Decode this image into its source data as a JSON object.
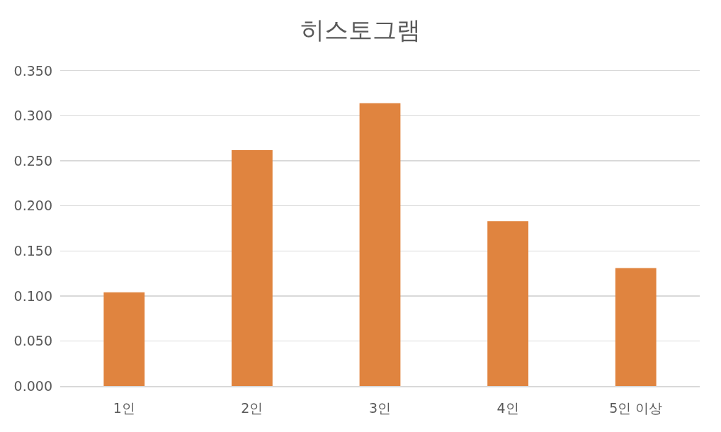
{
  "chart_data": {
    "type": "bar",
    "title": "히스토그램",
    "categories": [
      "1인",
      "2인",
      "3인",
      "4인",
      "5인 이상"
    ],
    "values": [
      0.104,
      0.262,
      0.314,
      0.183,
      0.131
    ],
    "color": "#e0843f",
    "ylim": [
      0,
      0.35
    ],
    "yticks": [
      {
        "value": 0,
        "label": "0.000"
      },
      {
        "value": 0.05,
        "label": "0.050"
      },
      {
        "value": 0.1,
        "label": "0.100"
      },
      {
        "value": 0.15,
        "label": "0.150"
      },
      {
        "value": 0.2,
        "label": "0.200"
      },
      {
        "value": 0.25,
        "label": "0.250"
      },
      {
        "value": 0.3,
        "label": "0.300"
      },
      {
        "value": 0.35,
        "label": "0.350"
      }
    ],
    "grid": "y"
  }
}
